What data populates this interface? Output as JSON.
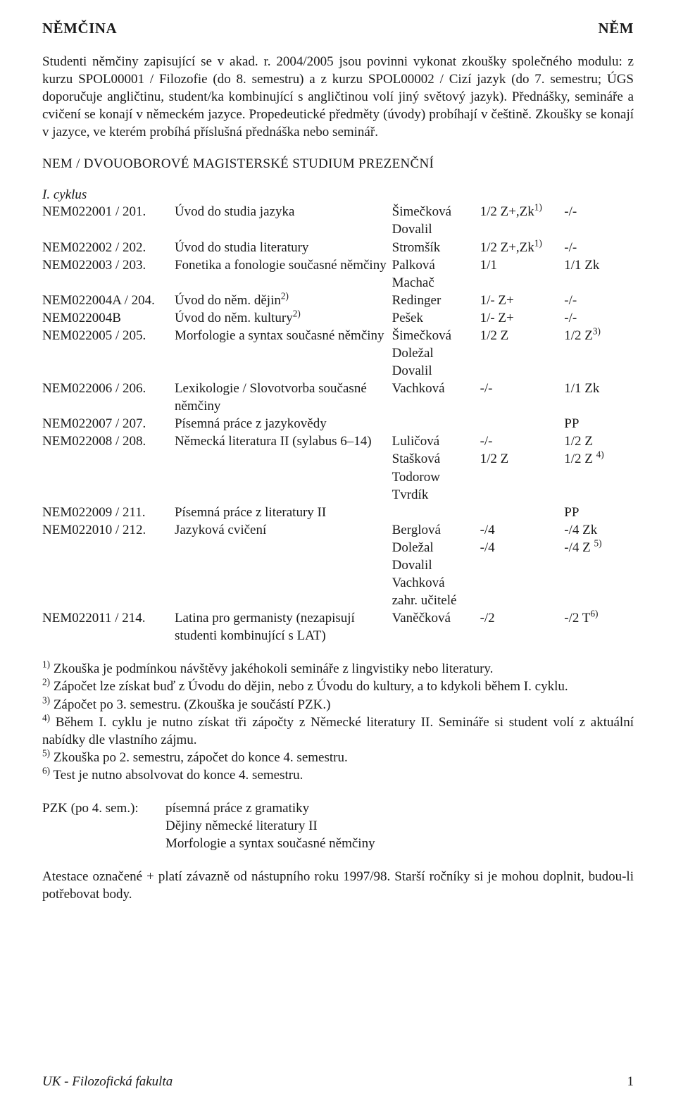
{
  "header": {
    "left": "NĚMČINA",
    "right": "NĚM"
  },
  "intro": "Studenti němčiny zapisující se v akad. r. 2004/2005 jsou povinni vykonat zkoušky společného modulu: z kurzu SPOL00001 / Filozofie (do 8. semestru) a z kurzu SPOL00002 / Cizí jazyk (do 7. semestru; ÚGS doporučuje angličtinu, student/ka kombinující s angličtinou volí jiný světový jazyk). Přednášky, semináře a cvičení se konají v německém jazyce. Propedeutické předměty (úvody) probíhají v češtině. Zkoušky se konají v jazyce, ve kterém probíhá příslušná přednáška nebo seminář.",
  "section_title": "NEM / DVOUOBOROVÉ MAGISTERSKÉ STUDIUM PREZENČNÍ",
  "cycle_label": "I. cyklus",
  "courses": [
    {
      "code": "NEM022001 / 201.",
      "title": "Úvod do studia jazyka",
      "instr": [
        "Šimečková",
        "Dovalil"
      ],
      "c1": "1/2 Z+,Zk",
      "c1sup": "1)",
      "c2": "-/-"
    },
    {
      "code": "NEM022002 / 202.",
      "title": "Úvod do studia literatury",
      "instr": [
        "Stromšík"
      ],
      "c1": "1/2 Z+,Zk",
      "c1sup": "1)",
      "c2": "-/-"
    },
    {
      "code": "NEM022003 / 203.",
      "title": "Fonetika a fonologie současné němčiny",
      "instr": [
        "Palková",
        "Machač"
      ],
      "c1": "1/1",
      "c2": "1/1 Zk"
    },
    {
      "code": "NEM022004A / 204.",
      "title": "Úvod do něm. dějin",
      "titlesup": "2)",
      "instr": [
        "Redinger"
      ],
      "c1": "1/- Z+",
      "c2": "-/-"
    },
    {
      "code": "NEM022004B",
      "title": "Úvod do něm. kultury",
      "titlesup": "2)",
      "instr": [
        "Pešek"
      ],
      "c1": "1/- Z+",
      "c2": "-/-"
    },
    {
      "code": "NEM022005 / 205.",
      "title": "Morfologie a syntax současné němčiny",
      "instr": [
        "Šimečková",
        "Doležal",
        "Dovalil"
      ],
      "c1": "1/2 Z",
      "c2": "1/2 Z",
      "c2sup": "3)"
    },
    {
      "code": "NEM022006 / 206.",
      "title": "Lexikologie / Slovotvorba současné němčiny",
      "instr": [
        "Vachková"
      ],
      "c1": "-/-",
      "c2": "1/1 Zk"
    },
    {
      "code": "NEM022007 / 207.",
      "title": "Písemná práce z jazykovědy",
      "instr": [],
      "c1": "",
      "c2": "PP"
    },
    {
      "code": "NEM022008 / 208.",
      "title": "Německá literatura II (sylabus 6–14)",
      "instr": [
        "Luličová",
        "Stašková",
        "Todorow",
        "Tvrdík"
      ],
      "c1": [
        "-/-",
        "1/2 Z"
      ],
      "c2": [
        "1/2 Z",
        "1/2 Z "
      ],
      "c2sup": "4)"
    },
    {
      "code": "NEM022009 / 211.",
      "title": "Písemná práce z literatury II",
      "instr": [],
      "c1": "",
      "c2": "PP"
    },
    {
      "code": "NEM022010 / 212.",
      "title": "Jazyková cvičení",
      "instr": [
        "Berglová",
        "Doležal",
        "Dovalil",
        "Vachková",
        "zahr. učitelé"
      ],
      "c1": [
        "-/4",
        "-/4"
      ],
      "c2": [
        "-/4 Zk",
        "-/4 Z "
      ],
      "c2sup": "5)"
    },
    {
      "code": "NEM022011 / 214.",
      "title": "Latina pro germanisty (nezapisují studenti kombinující s LAT)",
      "instr": [
        "Vaněčková"
      ],
      "c1": "-/2",
      "c2": "-/2 T",
      "c2sup": "6)"
    }
  ],
  "notes": [
    {
      "sup": "1)",
      "text": "Zkouška je podmínkou návštěvy jakéhokoli semináře z lingvistiky nebo literatury."
    },
    {
      "sup": "2)",
      "text": "Zápočet lze získat buď z Úvodu do dějin, nebo z Úvodu do kultury, a to kdykoli během I. cyklu."
    },
    {
      "sup": "3)",
      "text": "Zápočet po 3. semestru. (Zkouška je součástí PZK.)"
    },
    {
      "sup": "4)",
      "text": "Během I. cyklu je nutno získat tři zápočty z Německé literatury II. Semináře si student volí z aktuální nabídky dle vlastního zájmu."
    },
    {
      "sup": "5)",
      "text": "Zkouška po 2. semestru, zápočet do konce 4. semestru."
    },
    {
      "sup": "6)",
      "text": "Test je nutno absolvovat do konce 4. semestru."
    }
  ],
  "pzk": {
    "label": "PZK (po 4. sem.):",
    "lines": [
      "písemná práce z gramatiky",
      "Dějiny německé literatury II",
      "Morfologie a syntax současné němčiny"
    ]
  },
  "closing": "Atestace označené + platí závazně od nástupního roku 1997/98. Starší ročníky si je mohou doplnit, budou-li potřebovat body.",
  "footer": {
    "faculty": "UK - Filozofická fakulta",
    "page": "1"
  }
}
